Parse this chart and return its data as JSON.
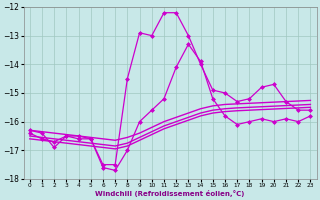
{
  "xlabel": "Windchill (Refroidissement éolien,°C)",
  "background_color": "#c8e8e8",
  "grid_color": "#a0c8c0",
  "line_color": "#cc00cc",
  "xlim": [
    -0.5,
    23.5
  ],
  "ylim": [
    -18,
    -12
  ],
  "yticks": [
    -18,
    -17,
    -16,
    -15,
    -14,
    -13,
    -12
  ],
  "xticks": [
    0,
    1,
    2,
    3,
    4,
    5,
    6,
    7,
    8,
    9,
    10,
    11,
    12,
    13,
    14,
    15,
    16,
    17,
    18,
    19,
    20,
    21,
    22,
    23
  ],
  "series": [
    {
      "x": [
        0,
        1,
        2,
        3,
        4,
        5,
        6,
        7,
        8,
        9,
        10,
        11,
        12,
        13,
        14,
        15,
        16,
        17,
        18,
        19,
        20,
        21,
        22,
        23
      ],
      "y": [
        -16.3,
        -16.35,
        -16.4,
        -16.45,
        -16.5,
        -16.55,
        -16.6,
        -16.65,
        -16.55,
        -16.4,
        -16.2,
        -16.0,
        -15.85,
        -15.7,
        -15.55,
        -15.45,
        -15.4,
        -15.38,
        -15.36,
        -15.34,
        -15.32,
        -15.3,
        -15.28,
        -15.26
      ],
      "style": "-",
      "marker": null,
      "lw": 1.0
    },
    {
      "x": [
        0,
        1,
        2,
        3,
        4,
        5,
        6,
        7,
        8,
        9,
        10,
        11,
        12,
        13,
        14,
        15,
        16,
        17,
        18,
        19,
        20,
        21,
        22,
        23
      ],
      "y": [
        -16.5,
        -16.55,
        -16.6,
        -16.65,
        -16.7,
        -16.75,
        -16.8,
        -16.85,
        -16.75,
        -16.55,
        -16.35,
        -16.15,
        -16.0,
        -15.85,
        -15.7,
        -15.6,
        -15.55,
        -15.52,
        -15.5,
        -15.48,
        -15.46,
        -15.44,
        -15.42,
        -15.4
      ],
      "style": "-",
      "marker": null,
      "lw": 1.0
    },
    {
      "x": [
        0,
        1,
        2,
        3,
        4,
        5,
        6,
        7,
        8,
        9,
        10,
        11,
        12,
        13,
        14,
        15,
        16,
        17,
        18,
        19,
        20,
        21,
        22,
        23
      ],
      "y": [
        -16.6,
        -16.65,
        -16.7,
        -16.75,
        -16.8,
        -16.85,
        -16.9,
        -16.95,
        -16.85,
        -16.65,
        -16.45,
        -16.25,
        -16.1,
        -15.95,
        -15.8,
        -15.7,
        -15.65,
        -15.62,
        -15.6,
        -15.58,
        -15.56,
        -15.54,
        -15.52,
        -15.5
      ],
      "style": "-",
      "marker": null,
      "lw": 1.0
    },
    {
      "x": [
        0,
        1,
        2,
        3,
        4,
        5,
        6,
        7,
        8,
        9,
        10,
        11,
        12,
        13,
        14,
        15,
        16,
        17,
        18,
        19,
        20,
        21,
        22,
        23
      ],
      "y": [
        -16.4,
        -16.6,
        -16.7,
        -16.5,
        -16.6,
        -16.6,
        -17.5,
        -17.5,
        -14.5,
        -12.9,
        -13.0,
        -12.2,
        -12.2,
        -13.0,
        -14.0,
        -14.9,
        -15.0,
        -15.3,
        -15.2,
        -14.8,
        -14.7,
        -15.3,
        -15.6,
        -15.6
      ],
      "style": "-",
      "marker": "D",
      "markersize": 2.0,
      "lw": 0.9
    },
    {
      "x": [
        0,
        1,
        2,
        3,
        4,
        5,
        6,
        7,
        8,
        9,
        10,
        11,
        12,
        13,
        14,
        15,
        16,
        17,
        18,
        19,
        20,
        21,
        22,
        23
      ],
      "y": [
        -16.3,
        -16.4,
        -16.9,
        -16.5,
        -16.5,
        -16.6,
        -17.6,
        -17.7,
        -17.0,
        -16.0,
        -15.6,
        -15.2,
        -14.1,
        -13.3,
        -13.9,
        -15.2,
        -15.8,
        -16.1,
        -16.0,
        -15.9,
        -16.0,
        -15.9,
        -16.0,
        -15.8
      ],
      "style": "-",
      "marker": "D",
      "markersize": 2.0,
      "lw": 0.9
    }
  ]
}
